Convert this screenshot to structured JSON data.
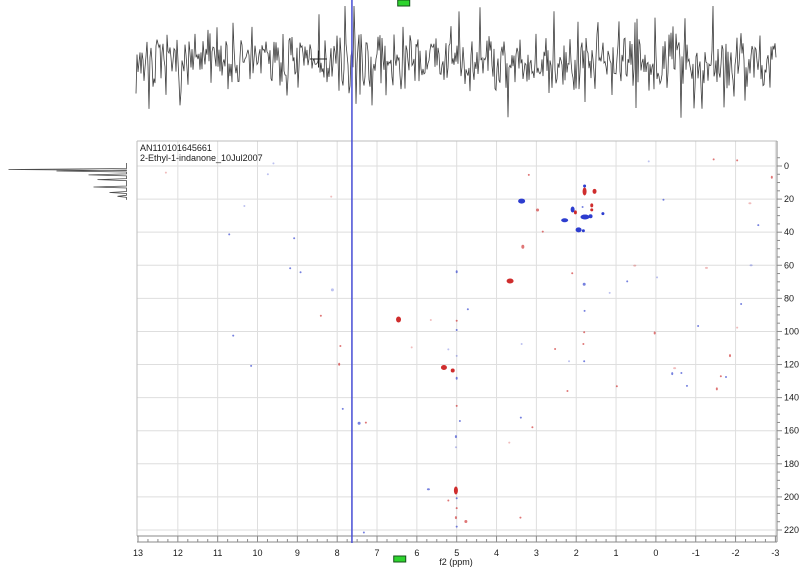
{
  "annotations": {
    "line1": "AN110101645661",
    "line2": "2-Ethyl-1-indanone_10Jul2007"
  },
  "colors": {
    "peak_red": "#cc2222",
    "peak_blue": "#2233cc",
    "cursor_blue": "#4a50d5",
    "handle_green": "#2ed42e",
    "handle_border": "#14511a",
    "grid": "#dedede",
    "border": "#bdbdbd",
    "axis": "#8a8a8a",
    "trace": "#3c3c3c"
  },
  "chart_data": {
    "type": "scatter",
    "title": "2D NMR spectrum (HSQC-type) with 1D projections",
    "x_axis": {
      "label": "f2 (ppm)",
      "range": [
        13,
        -3
      ],
      "ticks": [
        13,
        12,
        11,
        10,
        9,
        8,
        7,
        6,
        5,
        4,
        3,
        2,
        1,
        0,
        -1,
        -2,
        -3
      ],
      "minor_step": 0.25
    },
    "y_axis": {
      "label": "",
      "range": [
        -15,
        224
      ],
      "ticks": [
        0,
        20,
        40,
        60,
        80,
        100,
        120,
        140,
        160,
        180,
        200,
        220
      ],
      "minor_step": 5,
      "side": "right"
    },
    "grid": true,
    "cursor_f2_ppm": 7.63,
    "crosshair_marker": {
      "f2_ppm": 8.48,
      "note": "small + cursor on top trace"
    },
    "trace_handles_f2_ppm": {
      "top": 6.33,
      "bottom": 6.43
    },
    "peaks_legend": "entries: [f2_ppm, f1_value, color r|b, width_px, height_px, strength 2=strong 1=normal 0=faint]",
    "peaks": [
      [
        3.37,
        21.2,
        "b",
        7,
        5,
        2
      ],
      [
        1.79,
        15.4,
        "r",
        4,
        8,
        2
      ],
      [
        1.79,
        12.1,
        "b",
        3,
        3,
        2
      ],
      [
        1.54,
        15.3,
        "r",
        4,
        5,
        2
      ],
      [
        2.09,
        26.3,
        "b",
        4,
        6,
        2
      ],
      [
        2.02,
        28.0,
        "r",
        3,
        4,
        2
      ],
      [
        1.61,
        23.8,
        "r",
        3,
        4,
        2
      ],
      [
        1.61,
        26.5,
        "r",
        3,
        3,
        2
      ],
      [
        1.84,
        24.8,
        "b",
        2,
        2,
        1
      ],
      [
        1.78,
        30.8,
        "b",
        9,
        5,
        2
      ],
      [
        1.64,
        30.4,
        "b",
        4,
        4,
        2
      ],
      [
        2.29,
        32.8,
        "b",
        7,
        4,
        2
      ],
      [
        1.33,
        28.8,
        "b",
        3,
        3,
        2
      ],
      [
        1.94,
        38.6,
        "b",
        6,
        5,
        2
      ],
      [
        1.82,
        39.1,
        "b",
        3,
        3,
        2
      ],
      [
        2.97,
        26.6,
        "r",
        3,
        3,
        1
      ],
      [
        3.19,
        5.4,
        "r",
        2,
        2,
        1
      ],
      [
        3.34,
        48.8,
        "r",
        3,
        4,
        1
      ],
      [
        2.84,
        39.7,
        "r",
        2,
        2,
        1
      ],
      [
        3.66,
        69.5,
        "r",
        7,
        5,
        2
      ],
      [
        6.46,
        92.8,
        "r",
        5,
        6,
        2
      ],
      [
        5.32,
        121.8,
        "r",
        6,
        5,
        2
      ],
      [
        5.1,
        123.6,
        "r",
        4,
        4,
        2
      ],
      [
        5.02,
        196.1,
        "r",
        4,
        8,
        2
      ],
      [
        4.72,
        86.6,
        "b",
        2,
        2,
        1
      ],
      [
        5.0,
        93.5,
        "r",
        2,
        2,
        1
      ],
      [
        5.65,
        93.1,
        "r",
        2,
        2,
        0
      ],
      [
        6.13,
        109.6,
        "r",
        2,
        2,
        0
      ],
      [
        5.21,
        110.8,
        "b",
        2,
        2,
        0
      ],
      [
        3.37,
        107.6,
        "b",
        2,
        2,
        0
      ],
      [
        5.0,
        63.9,
        "b",
        2,
        3,
        1
      ],
      [
        5.0,
        99.1,
        "b",
        2,
        2,
        1
      ],
      [
        5.0,
        114.8,
        "b",
        2,
        2,
        0
      ],
      [
        5.0,
        128.3,
        "b",
        2,
        3,
        1
      ],
      [
        7.86,
        146.8,
        "b",
        2,
        2,
        1
      ],
      [
        7.45,
        155.5,
        "b",
        3,
        3,
        1
      ],
      [
        7.28,
        155.1,
        "r",
        2,
        2,
        1
      ],
      [
        5.0,
        145.0,
        "r",
        2,
        2,
        1
      ],
      [
        4.92,
        154.1,
        "b",
        2,
        2,
        1
      ],
      [
        5.02,
        163.6,
        "b",
        2,
        3,
        1
      ],
      [
        5.02,
        170.0,
        "b",
        2,
        2,
        0
      ],
      [
        3.39,
        152.1,
        "b",
        2,
        2,
        1
      ],
      [
        3.1,
        157.9,
        "r",
        2,
        2,
        1
      ],
      [
        3.68,
        167.2,
        "r",
        2,
        2,
        0
      ],
      [
        5.71,
        195.4,
        "b",
        3,
        2,
        1
      ],
      [
        5.21,
        202.2,
        "r",
        2,
        2,
        1
      ],
      [
        5.0,
        200.8,
        "b",
        2,
        2,
        1
      ],
      [
        5.0,
        206.8,
        "r",
        2,
        2,
        1
      ],
      [
        5.02,
        212.5,
        "r",
        2,
        3,
        1
      ],
      [
        4.77,
        214.9,
        "r",
        3,
        3,
        1
      ],
      [
        5.0,
        218.0,
        "b",
        2,
        2,
        1
      ],
      [
        7.33,
        221.5,
        "b",
        2,
        2,
        1
      ],
      [
        3.4,
        212.5,
        "r",
        2,
        2,
        1
      ],
      [
        10.71,
        41.3,
        "b",
        2,
        2,
        1
      ],
      [
        9.08,
        43.7,
        "b",
        2,
        2,
        1
      ],
      [
        9.18,
        61.8,
        "b",
        2,
        2,
        1
      ],
      [
        8.92,
        64.2,
        "b",
        2,
        2,
        1
      ],
      [
        8.12,
        74.9,
        "b",
        3,
        3,
        0
      ],
      [
        8.41,
        90.5,
        "r",
        2,
        2,
        1
      ],
      [
        10.61,
        102.5,
        "b",
        2,
        2,
        1
      ],
      [
        7.92,
        108.8,
        "r",
        2,
        2,
        1
      ],
      [
        7.95,
        119.8,
        "r",
        2,
        3,
        1
      ],
      [
        10.16,
        120.8,
        "b",
        2,
        2,
        1
      ],
      [
        2.1,
        64.8,
        "r",
        2,
        2,
        1
      ],
      [
        1.8,
        71.5,
        "b",
        3,
        3,
        1
      ],
      [
        0.72,
        69.7,
        "b",
        2,
        2,
        1
      ],
      [
        -0.03,
        67.3,
        "b",
        2,
        2,
        0
      ],
      [
        0.53,
        60.2,
        "r",
        3,
        2,
        0
      ],
      [
        -1.27,
        61.6,
        "r",
        3,
        2,
        0
      ],
      [
        -2.39,
        60.0,
        "b",
        3,
        2,
        0
      ],
      [
        1.16,
        76.7,
        "b",
        2,
        2,
        0
      ],
      [
        1.79,
        87.6,
        "b",
        2,
        2,
        1
      ],
      [
        -2.14,
        83.4,
        "b",
        2,
        2,
        1
      ],
      [
        -1.06,
        96.7,
        "b",
        2,
        2,
        1
      ],
      [
        1.8,
        100.5,
        "r",
        2,
        2,
        1
      ],
      [
        1.82,
        107.6,
        "r",
        2,
        2,
        1
      ],
      [
        2.53,
        110.6,
        "r",
        2,
        2,
        1
      ],
      [
        0.03,
        100.9,
        "r",
        2,
        3,
        1
      ],
      [
        -1.86,
        114.6,
        "r",
        2,
        3,
        1
      ],
      [
        2.18,
        118.0,
        "b",
        2,
        2,
        0
      ],
      [
        1.8,
        118.0,
        "b",
        2,
        2,
        1
      ],
      [
        -2.04,
        97.7,
        "r",
        2,
        2,
        0
      ],
      [
        -0.41,
        125.5,
        "b",
        2,
        3,
        1
      ],
      [
        -0.64,
        125.1,
        "b",
        2,
        2,
        1
      ],
      [
        -0.47,
        122.2,
        "r",
        3,
        2,
        0
      ],
      [
        -0.78,
        132.9,
        "b",
        2,
        2,
        1
      ],
      [
        -1.63,
        127.1,
        "r",
        2,
        2,
        1
      ],
      [
        -1.76,
        127.5,
        "b",
        2,
        2,
        1
      ],
      [
        -1.53,
        134.7,
        "r",
        2,
        3,
        1
      ],
      [
        0.98,
        133.1,
        "r",
        2,
        2,
        1
      ],
      [
        2.22,
        136.0,
        "r",
        2,
        2,
        1
      ],
      [
        0.18,
        -2.8,
        "b",
        2,
        2,
        0
      ],
      [
        -1.45,
        -4.0,
        "r",
        2,
        2,
        1
      ],
      [
        -2.04,
        -3.4,
        "r",
        2,
        2,
        1
      ],
      [
        -2.91,
        6.8,
        "r",
        2,
        3,
        1
      ],
      [
        -0.19,
        20.4,
        "b",
        2,
        2,
        1
      ],
      [
        -2.36,
        22.5,
        "r",
        3,
        2,
        0
      ],
      [
        -2.57,
        35.7,
        "b",
        2,
        2,
        1
      ],
      [
        12.3,
        4.0,
        "r",
        2,
        2,
        0
      ],
      [
        9.6,
        -1.6,
        "b",
        2,
        2,
        0
      ],
      [
        8.15,
        18.5,
        "r",
        2,
        2,
        0
      ],
      [
        10.33,
        24.2,
        "b",
        2,
        2,
        0
      ],
      [
        9.74,
        5.0,
        "b",
        2,
        2,
        0
      ]
    ],
    "projections": {
      "top": {
        "kind": "noise",
        "seed": 7,
        "note": "f2 1D trace is featureless noise",
        "amplitude_rel": 1
      },
      "left": {
        "kind": "peaks",
        "baseline_v_range": [
          -1.8,
          20.5
        ],
        "peaks": [
          {
            "v": 2.1,
            "len": 118
          },
          {
            "v": 3.0,
            "len": 70
          },
          {
            "v": 5.4,
            "len": 38
          },
          {
            "v": 8.2,
            "len": 29
          },
          {
            "v": 12.7,
            "len": 33
          },
          {
            "v": 16.0,
            "len": 17
          },
          {
            "v": 18.3,
            "len": 9
          }
        ]
      }
    }
  }
}
